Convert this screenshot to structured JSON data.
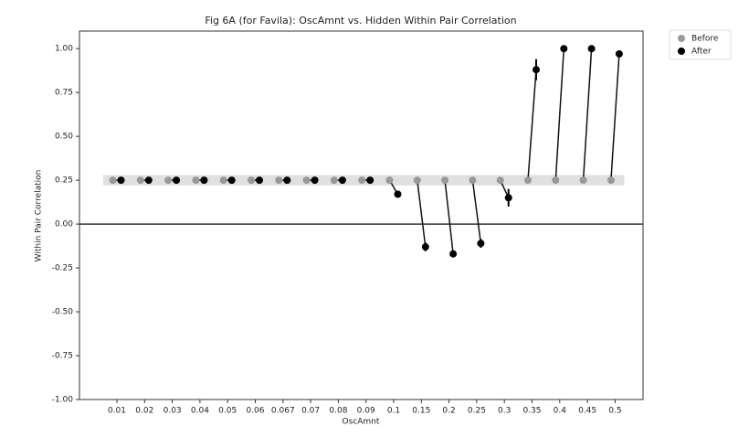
{
  "chart_data": {
    "type": "dodged-point",
    "title": "Fig 6A (for Favila): OscAmnt vs. Hidden Within Pair Correlation",
    "x_label": "OscAmnt",
    "y_label": "Within Pair Correlation",
    "categories": [
      "0.01",
      "0.02",
      "0.03",
      "0.04",
      "0.05",
      "0.06",
      "0.067",
      "0.07",
      "0.08",
      "0.09",
      "0.1",
      "0.15",
      "0.2",
      "0.25",
      "0.3",
      "0.35",
      "0.4",
      "0.45",
      "0.5"
    ],
    "series": [
      {
        "name": "Before",
        "color": "#999999",
        "values": [
          0.25,
          0.25,
          0.25,
          0.25,
          0.25,
          0.25,
          0.25,
          0.25,
          0.25,
          0.25,
          0.25,
          0.25,
          0.25,
          0.25,
          0.25,
          0.25,
          0.25,
          0.25,
          0.25
        ]
      },
      {
        "name": "After",
        "color": "#000000",
        "values": [
          0.25,
          0.25,
          0.25,
          0.25,
          0.25,
          0.25,
          0.25,
          0.25,
          0.25,
          0.25,
          0.17,
          -0.13,
          -0.17,
          -0.11,
          0.15,
          0.88,
          1.0,
          1.0,
          0.97
        ],
        "errors": [
          0,
          0,
          0,
          0,
          0,
          0,
          0,
          0,
          0,
          0,
          0.01,
          0.025,
          0.01,
          0.025,
          0.05,
          0.06,
          0,
          0,
          0
        ]
      }
    ],
    "band": {
      "ymin": 0.22,
      "ymax": 0.28,
      "color": "#e0e0e0"
    },
    "hline": 0,
    "ylim": [
      -1,
      1.1
    ],
    "yticks": [
      {
        "value": -1,
        "label": "-1.00"
      },
      {
        "value": -0.75,
        "label": "-0.75"
      },
      {
        "value": -0.5,
        "label": "-0.50"
      },
      {
        "value": -0.25,
        "label": "-0.25"
      },
      {
        "value": 0,
        "label": "0.00"
      },
      {
        "value": 0.25,
        "label": "0.25"
      },
      {
        "value": 0.5,
        "label": "0.50"
      },
      {
        "value": 0.75,
        "label": "0.75"
      },
      {
        "value": 1,
        "label": "1.00"
      }
    ],
    "legend": "outside upper right"
  }
}
